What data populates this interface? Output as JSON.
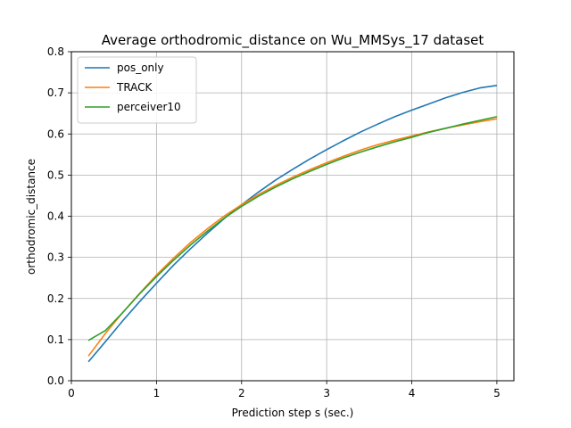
{
  "chart_data": {
    "type": "line",
    "title": "Average orthodromic_distance on Wu_MMSys_17 dataset",
    "xlabel": "Prediction step s (sec.)",
    "ylabel": "orthodromic_distance",
    "xlim": [
      0,
      5.2
    ],
    "ylim": [
      0,
      0.8
    ],
    "xticks": [
      0,
      1,
      2,
      3,
      4,
      5
    ],
    "yticks": [
      0.0,
      0.1,
      0.2,
      0.3,
      0.4,
      0.5,
      0.6,
      0.7,
      0.8
    ],
    "xtick_labels": [
      "0",
      "1",
      "2",
      "3",
      "4",
      "5"
    ],
    "ytick_labels": [
      "0.0",
      "0.1",
      "0.2",
      "0.3",
      "0.4",
      "0.5",
      "0.6",
      "0.7",
      "0.8"
    ],
    "grid": true,
    "legend_position": "upper-left",
    "x": [
      0.2,
      0.4,
      0.6,
      0.8,
      1.0,
      1.2,
      1.4,
      1.6,
      1.8,
      2.0,
      2.2,
      2.4,
      2.6,
      2.8,
      3.0,
      3.2,
      3.4,
      3.6,
      3.8,
      4.0,
      4.2,
      4.4,
      4.6,
      4.8,
      5.0
    ],
    "series": [
      {
        "name": "pos_only",
        "color": "#1f77b4",
        "values": [
          0.046,
          0.095,
          0.145,
          0.192,
          0.237,
          0.281,
          0.321,
          0.359,
          0.395,
          0.428,
          0.459,
          0.488,
          0.514,
          0.539,
          0.562,
          0.584,
          0.605,
          0.624,
          0.642,
          0.658,
          0.673,
          0.688,
          0.701,
          0.712,
          0.718
        ]
      },
      {
        "name": "TRACK",
        "color": "#ff7f0e",
        "values": [
          0.06,
          0.115,
          0.165,
          0.212,
          0.257,
          0.298,
          0.336,
          0.37,
          0.401,
          0.428,
          0.453,
          0.475,
          0.495,
          0.513,
          0.53,
          0.546,
          0.561,
          0.574,
          0.585,
          0.595,
          0.605,
          0.614,
          0.622,
          0.63,
          0.637
        ]
      },
      {
        "name": "perceiver10",
        "color": "#2ca02c",
        "values": [
          0.098,
          0.122,
          0.165,
          0.211,
          0.253,
          0.293,
          0.33,
          0.364,
          0.396,
          0.424,
          0.449,
          0.471,
          0.491,
          0.509,
          0.526,
          0.542,
          0.556,
          0.569,
          0.581,
          0.592,
          0.604,
          0.614,
          0.624,
          0.633,
          0.642
        ]
      }
    ]
  }
}
